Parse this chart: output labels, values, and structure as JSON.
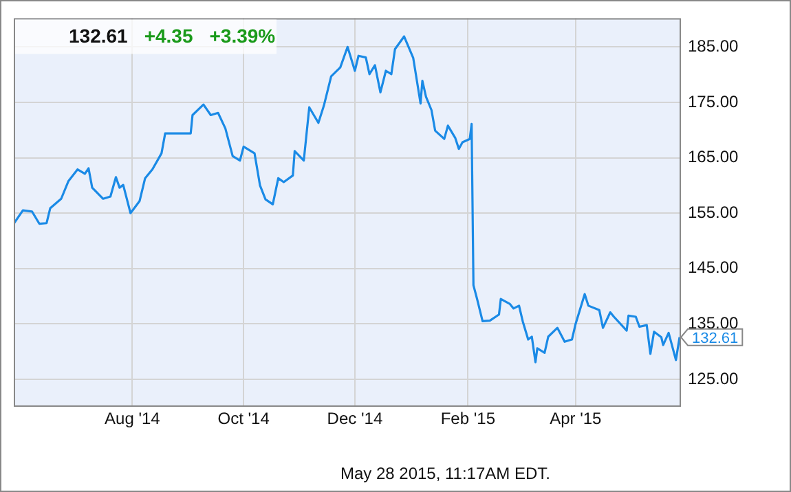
{
  "chart_data": {
    "type": "line",
    "annotations": [
      "132.61",
      "+4.35",
      "+3.39%",
      "May 28 2015, 11:17AM EDT.",
      {
        "text": "132.61",
        "x": "2015-05-28",
        "y": 132.61
      }
    ],
    "x": [
      "2014-05-28",
      "2014-06-02",
      "2014-06-07",
      "2014-06-11",
      "2014-06-15",
      "2014-06-17",
      "2014-06-23",
      "2014-06-27",
      "2014-07-02",
      "2014-07-06",
      "2014-07-08",
      "2014-07-10",
      "2014-07-16",
      "2014-07-20",
      "2014-07-23",
      "2014-07-25",
      "2014-07-27",
      "2014-07-31",
      "2014-08-05",
      "2014-08-08",
      "2014-08-12",
      "2014-08-17",
      "2014-08-19",
      "2014-08-24",
      "2014-09-02",
      "2014-09-03",
      "2014-09-09",
      "2014-09-13",
      "2014-09-17",
      "2014-09-21",
      "2014-09-25",
      "2014-09-29",
      "2014-10-01",
      "2014-10-07",
      "2014-10-10",
      "2014-10-13",
      "2014-10-17",
      "2014-10-20",
      "2014-10-23",
      "2014-10-28",
      "2014-10-29",
      "2014-11-03",
      "2014-11-06",
      "2014-11-11",
      "2014-11-14",
      "2014-11-18",
      "2014-11-23",
      "2014-11-27",
      "2014-12-01",
      "2014-12-03",
      "2014-12-07",
      "2014-12-09",
      "2014-12-12",
      "2014-12-15",
      "2014-12-18",
      "2014-12-21",
      "2014-12-23",
      "2014-12-28",
      "2015-01-02",
      "2015-01-06",
      "2015-01-07",
      "2015-01-09",
      "2015-01-12",
      "2015-01-14",
      "2015-01-19",
      "2015-01-21",
      "2015-01-25",
      "2015-01-27",
      "2015-01-29",
      "2015-02-02",
      "2015-02-03",
      "2015-02-04",
      "2015-02-06",
      "2015-02-09",
      "2015-02-13",
      "2015-02-18",
      "2015-02-19",
      "2015-02-24",
      "2015-02-26",
      "2015-03-01",
      "2015-03-03",
      "2015-03-06",
      "2015-03-08",
      "2015-03-10",
      "2015-03-11",
      "2015-03-15",
      "2015-03-17",
      "2015-03-22",
      "2015-03-26",
      "2015-03-30",
      "2015-04-01",
      "2015-04-06",
      "2015-04-08",
      "2015-04-14",
      "2015-04-16",
      "2015-04-20",
      "2015-04-22",
      "2015-04-29",
      "2015-04-30",
      "2015-05-04",
      "2015-05-06",
      "2015-05-10",
      "2015-05-12",
      "2015-05-14",
      "2015-05-18",
      "2015-05-19",
      "2015-05-22",
      "2015-05-26",
      "2015-05-28"
    ],
    "series": [
      {
        "color": "#1a8ae6",
        "values": [
          153.1,
          155.5,
          155.3,
          153.1,
          153.2,
          155.9,
          157.6,
          160.8,
          162.9,
          162.1,
          163.1,
          159.6,
          157.6,
          158.0,
          161.5,
          159.6,
          160.1,
          155.0,
          157.2,
          161.3,
          162.9,
          165.8,
          169.4,
          169.4,
          169.4,
          172.7,
          174.6,
          172.7,
          173.1,
          170.3,
          165.3,
          164.5,
          167.0,
          165.8,
          160.0,
          157.5,
          156.6,
          161.3,
          160.6,
          161.8,
          166.2,
          164.5,
          174.1,
          171.3,
          174.4,
          179.7,
          181.3,
          185.0,
          180.7,
          183.4,
          183.1,
          180.1,
          181.7,
          176.8,
          180.7,
          180.1,
          184.6,
          186.9,
          183.0,
          174.8,
          178.9,
          176.0,
          173.6,
          169.9,
          168.4,
          170.8,
          168.6,
          166.6,
          167.8,
          168.4,
          171.1,
          142.0,
          139.5,
          135.5,
          135.6,
          136.7,
          139.5,
          138.6,
          137.8,
          138.3,
          135.5,
          132.2,
          132.7,
          128.1,
          130.6,
          129.8,
          132.7,
          134.3,
          131.8,
          132.2,
          135.0,
          140.4,
          138.3,
          137.5,
          134.3,
          137.1,
          136.3,
          133.8,
          136.5,
          136.3,
          134.5,
          134.8,
          129.6,
          133.6,
          132.6,
          131.2,
          133.4,
          128.5,
          132.6
        ]
      }
    ],
    "xlim": [
      "2014-05-28",
      "2015-05-28"
    ],
    "xticks": [
      {
        "value": "2014-08-01",
        "label": "Aug '14"
      },
      {
        "value": "2014-10-01",
        "label": "Oct '14"
      },
      {
        "value": "2014-12-01",
        "label": "Dec '14"
      },
      {
        "value": "2015-02-01",
        "label": "Feb '15"
      },
      {
        "value": "2015-04-01",
        "label": "Apr '15"
      }
    ],
    "ylim": [
      120.3,
      190.2
    ],
    "yticks": [
      {
        "value": 125,
        "label": "125.00"
      },
      {
        "value": 135,
        "label": "135.00"
      },
      {
        "value": 145,
        "label": "145.00"
      },
      {
        "value": 155,
        "label": "155.00"
      },
      {
        "value": 165,
        "label": "165.00"
      },
      {
        "value": 175,
        "label": "175.00"
      },
      {
        "value": 185,
        "label": "185.00"
      }
    ],
    "grid": true,
    "legend": false,
    "marker": "none",
    "line_style": "solid"
  }
}
